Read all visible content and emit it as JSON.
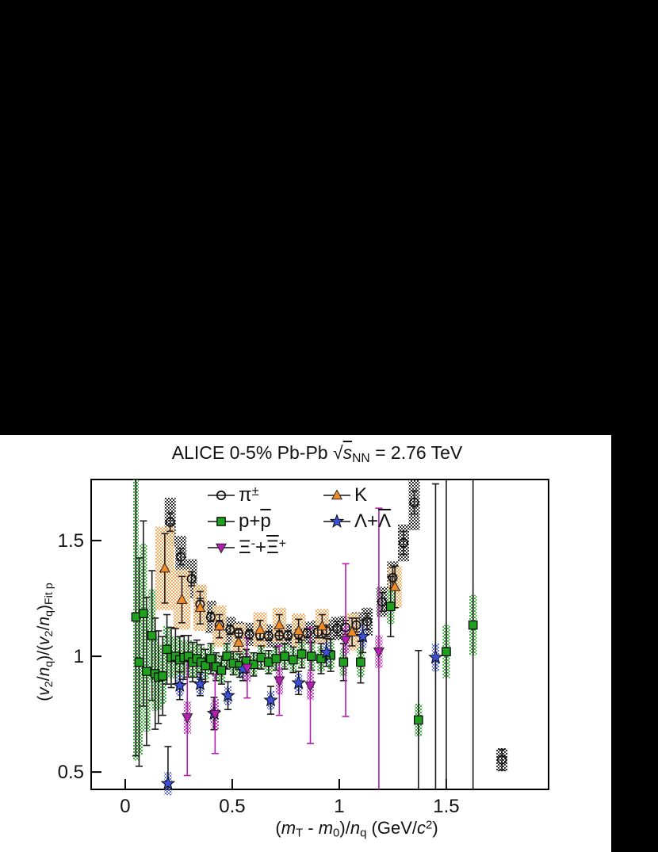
{
  "title": {
    "text": "ALICE 0-5% Pb-Pb √s_NN = 2.76 TeV",
    "segments": [
      [
        "ALICE 0-5% Pb-Pb ",
        ""
      ],
      [
        "√",
        ""
      ],
      [
        "s",
        "i ov"
      ],
      [
        "NN",
        "sub"
      ],
      [
        " = 2.76 TeV",
        ""
      ]
    ]
  },
  "axes": {
    "x": {
      "label": "(m_T - m_0)/n_q (GeV/c^2)",
      "label_segments": [
        [
          "(",
          ""
        ],
        [
          "m",
          "i"
        ],
        [
          "T",
          "sub"
        ],
        [
          " - ",
          ""
        ],
        [
          "m",
          "i"
        ],
        [
          "0",
          "sub"
        ],
        [
          ")/",
          ""
        ],
        [
          "n",
          "i"
        ],
        [
          "q",
          "sub"
        ],
        [
          " (GeV/",
          ""
        ],
        [
          "c",
          "i"
        ],
        [
          "2",
          "sup"
        ],
        [
          ")",
          ""
        ]
      ],
      "ticks": [
        {
          "v": 0,
          "label": "0"
        },
        {
          "v": 0.5,
          "label": "0.5"
        },
        {
          "v": 1,
          "label": "1"
        },
        {
          "v": 1.5,
          "label": "1.5"
        }
      ]
    },
    "y": {
      "label": "(v_2/n_q)/(v_2/n_q)_Fit p",
      "label_segments": [
        [
          "(",
          ""
        ],
        [
          "v",
          "i"
        ],
        [
          "2",
          "sub"
        ],
        [
          "/",
          ""
        ],
        [
          "n",
          "i"
        ],
        [
          "q",
          "sub"
        ],
        [
          ")/(",
          ""
        ],
        [
          "v",
          "i"
        ],
        [
          "2",
          "sub"
        ],
        [
          "/",
          ""
        ],
        [
          "n",
          "i"
        ],
        [
          "q",
          "sub"
        ],
        [
          ")",
          ""
        ],
        [
          "Fit p",
          "sub"
        ]
      ],
      "ticks": [
        {
          "v": 0.5,
          "label": "0.5"
        },
        {
          "v": 1,
          "label": "1"
        },
        {
          "v": 1.5,
          "label": "1.5"
        }
      ]
    }
  },
  "legend": {
    "items": [
      {
        "name": "pion",
        "marker": "circle-open",
        "color": "#151515",
        "col": 0,
        "row": 0,
        "label_segments": [
          [
            "π",
            ""
          ],
          [
            "±",
            "sup"
          ]
        ]
      },
      {
        "name": "kaon",
        "marker": "triangle-up",
        "color": "#f28c28",
        "col": 1,
        "row": 0,
        "label_segments": [
          [
            "K",
            ""
          ]
        ]
      },
      {
        "name": "proton",
        "marker": "square",
        "color": "#1fa11f",
        "col": 0,
        "row": 1,
        "label_segments": [
          [
            "p+",
            ""
          ],
          [
            "p",
            "ov"
          ]
        ]
      },
      {
        "name": "lambda",
        "marker": "star",
        "color": "#3c50d6",
        "col": 1,
        "row": 1,
        "label_segments": [
          [
            "Λ+",
            ""
          ],
          [
            "Λ",
            "ov"
          ]
        ]
      },
      {
        "name": "xi",
        "marker": "triangle-down",
        "color": "#b51db5",
        "col": 0,
        "row": 2,
        "label_segments": [
          [
            "Ξ",
            ""
          ],
          [
            "-",
            "sup"
          ],
          [
            "+",
            ""
          ],
          [
            "Ξ",
            "ov"
          ],
          [
            "+",
            "sup"
          ]
        ]
      }
    ]
  },
  "chart_data": {
    "type": "scatter",
    "title": "ALICE 0-5% Pb-Pb √s_NN = 2.76 TeV",
    "xlabel": "(m_T - m_0)/n_q (GeV/c^2)",
    "ylabel": "(v_2/n_q)/(v_2/n_q)_Fit p",
    "xlim": [
      -0.159,
      1.978
    ],
    "ylim": [
      0.425,
      1.764
    ],
    "grid": false,
    "legend_position": "top-inside",
    "point_format": [
      "x",
      "y",
      "stat_err",
      "sys_err",
      "band_halfwidth_override"
    ],
    "series": [
      {
        "name": "pion",
        "label": "π±",
        "marker": "circle-open",
        "color": "#151515",
        "band_color": "#1a1a1a",
        "err_color": "#1c1c1c",
        "band_halfwidth": 0.026,
        "points": [
          [
            0.21,
            1.58,
            0.04,
            0.105
          ],
          [
            0.26,
            1.43,
            0.035,
            0.09
          ],
          [
            0.31,
            1.335,
            0.03,
            0.085
          ],
          [
            0.35,
            1.225,
            0.025,
            0.08
          ],
          [
            0.4,
            1.17,
            0.02,
            0.07
          ],
          [
            0.44,
            1.135,
            0.02,
            0.06
          ],
          [
            0.49,
            1.115,
            0.02,
            0.055
          ],
          [
            0.53,
            1.1,
            0.02,
            0.05
          ],
          [
            0.58,
            1.095,
            0.02,
            0.05
          ],
          [
            0.63,
            1.09,
            0.02,
            0.05
          ],
          [
            0.67,
            1.088,
            0.02,
            0.05
          ],
          [
            0.72,
            1.09,
            0.02,
            0.05
          ],
          [
            0.76,
            1.09,
            0.02,
            0.05
          ],
          [
            0.81,
            1.095,
            0.02,
            0.05
          ],
          [
            0.85,
            1.1,
            0.02,
            0.05
          ],
          [
            0.9,
            1.105,
            0.025,
            0.05
          ],
          [
            0.94,
            1.11,
            0.025,
            0.05
          ],
          [
            0.99,
            1.12,
            0.03,
            0.05
          ],
          [
            1.03,
            1.125,
            0.03,
            0.05
          ],
          [
            1.08,
            1.135,
            0.03,
            0.055
          ],
          [
            1.13,
            1.15,
            0.035,
            0.06
          ],
          [
            1.2,
            1.235,
            0.04,
            0.065
          ],
          [
            1.25,
            1.34,
            0.045,
            0.07
          ],
          [
            1.3,
            1.49,
            0.05,
            0.08
          ],
          [
            1.35,
            1.665,
            0.05,
            0.12
          ],
          [
            1.76,
            0.553,
            0.045,
            0.05
          ]
        ]
      },
      {
        "name": "kaon",
        "label": "K",
        "marker": "triangle-up",
        "color": "#f28c28",
        "band_color": "#f7a24b",
        "err_color": "#1c1c1c",
        "band_halfwidth": 0.032,
        "points": [
          [
            0.185,
            1.38,
            0.15,
            0.18,
            0.045
          ],
          [
            0.265,
            1.245,
            0.1,
            0.13,
            0.04
          ],
          [
            0.35,
            1.21,
            0.07,
            0.1
          ],
          [
            0.44,
            1.13,
            0.05,
            0.09
          ],
          [
            0.53,
            1.06,
            0.04,
            0.08
          ],
          [
            0.63,
            1.115,
            0.04,
            0.075
          ],
          [
            0.72,
            1.135,
            0.045,
            0.075
          ],
          [
            0.81,
            1.11,
            0.05,
            0.075
          ],
          [
            0.92,
            1.13,
            0.05,
            0.075
          ],
          [
            1.06,
            1.105,
            0.06,
            0.08
          ],
          [
            1.26,
            1.3,
            0.09,
            0.09
          ]
        ]
      },
      {
        "name": "proton",
        "label": "p+p̄",
        "marker": "square",
        "color": "#1fa11f",
        "band_color": "#2bab2b",
        "err_color": "#1c1c1c",
        "band_halfwidth": 0.017,
        "points": [
          [
            0.05,
            1.17,
            0.6,
            0.62,
            0.013
          ],
          [
            0.065,
            0.975,
            0.45,
            0.4
          ],
          [
            0.085,
            1.185,
            0.4,
            0.3
          ],
          [
            0.1,
            0.935,
            0.32,
            0.26
          ],
          [
            0.125,
            1.09,
            0.28,
            0.2
          ],
          [
            0.14,
            0.925,
            0.24,
            0.16
          ],
          [
            0.155,
            0.91,
            0.2,
            0.14
          ],
          [
            0.175,
            0.915,
            0.17,
            0.12
          ],
          [
            0.195,
            1.03,
            0.15,
            0.1
          ],
          [
            0.215,
            0.995,
            0.13,
            0.09
          ],
          [
            0.235,
            1.0,
            0.12,
            0.085
          ],
          [
            0.255,
            0.985,
            0.1,
            0.08
          ],
          [
            0.275,
            0.995,
            0.095,
            0.075
          ],
          [
            0.295,
            1.0,
            0.09,
            0.07
          ],
          [
            0.315,
            0.975,
            0.085,
            0.07
          ],
          [
            0.335,
            0.99,
            0.08,
            0.065
          ],
          [
            0.355,
            0.975,
            0.075,
            0.065
          ],
          [
            0.375,
            0.96,
            0.07,
            0.06
          ],
          [
            0.4,
            0.99,
            0.065,
            0.06
          ],
          [
            0.425,
            0.955,
            0.06,
            0.055
          ],
          [
            0.45,
            0.94,
            0.06,
            0.055
          ],
          [
            0.475,
            1.0,
            0.055,
            0.055
          ],
          [
            0.505,
            0.97,
            0.05,
            0.05
          ],
          [
            0.535,
            0.96,
            0.05,
            0.05
          ],
          [
            0.565,
            0.98,
            0.05,
            0.05
          ],
          [
            0.6,
            0.965,
            0.05,
            0.05
          ],
          [
            0.635,
            0.995,
            0.05,
            0.05
          ],
          [
            0.67,
            0.975,
            0.05,
            0.05
          ],
          [
            0.705,
            0.99,
            0.05,
            0.05
          ],
          [
            0.745,
            1.0,
            0.055,
            0.05
          ],
          [
            0.785,
            0.985,
            0.055,
            0.05
          ],
          [
            0.825,
            1.01,
            0.06,
            0.055
          ],
          [
            0.87,
            1.0,
            0.06,
            0.055
          ],
          [
            0.915,
            0.99,
            0.065,
            0.055
          ],
          [
            0.96,
            1.005,
            0.07,
            0.06
          ],
          [
            1.02,
            0.975,
            0.08,
            0.06
          ],
          [
            1.1,
            0.975,
            0.09,
            0.065
          ],
          [
            1.24,
            1.215,
            0.13,
            0.075
          ],
          [
            1.37,
            0.725,
            0.3,
            0.07
          ],
          [
            1.5,
            1.02,
            0.9,
            0.115
          ],
          [
            1.625,
            1.135,
            0.9,
            0.13
          ]
        ]
      },
      {
        "name": "lambda",
        "label": "Λ+Λ̄",
        "marker": "star",
        "color": "#3c50d6",
        "band_color": "#4a5fe0",
        "err_color": "#1c1c1c",
        "band_halfwidth": 0.017,
        "points": [
          [
            0.2,
            0.45,
            0.16,
            0.05
          ],
          [
            0.255,
            0.873,
            0.06,
            0.045
          ],
          [
            0.35,
            0.88,
            0.05,
            0.045
          ],
          [
            0.415,
            0.753,
            0.07,
            0.045
          ],
          [
            0.48,
            0.83,
            0.06,
            0.04
          ],
          [
            0.55,
            0.945,
            0.05,
            0.04
          ],
          [
            0.68,
            0.81,
            0.06,
            0.04
          ],
          [
            0.81,
            0.885,
            0.05,
            0.04
          ],
          [
            0.94,
            1.017,
            0.06,
            0.045
          ],
          [
            1.11,
            1.086,
            0.07,
            0.05
          ],
          [
            1.45,
            0.995,
            0.75,
            0.06
          ]
        ]
      },
      {
        "name": "xi",
        "label": "Ξ⁻+Ξ̄⁺",
        "marker": "triangle-down",
        "color": "#b51db5",
        "band_color": "#c030c0",
        "err_color": "#b51db5",
        "band_halfwidth": 0.017,
        "points": [
          [
            0.29,
            0.735,
            0.25,
            0.07
          ],
          [
            0.42,
            0.75,
            0.17,
            0.065
          ],
          [
            0.57,
            0.95,
            0.13,
            0.06
          ],
          [
            0.72,
            0.895,
            0.15,
            0.06
          ],
          [
            0.865,
            0.873,
            0.25,
            0.06
          ],
          [
            1.03,
            1.07,
            0.33,
            0.06
          ],
          [
            1.185,
            1.02,
            0.62,
            0.07
          ]
        ]
      }
    ]
  }
}
